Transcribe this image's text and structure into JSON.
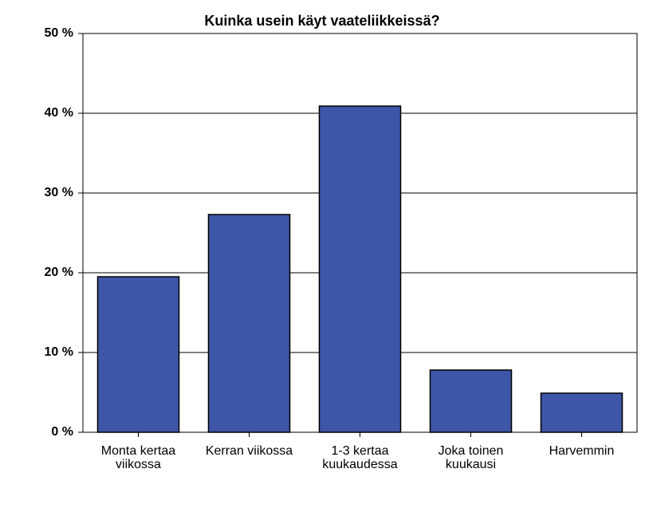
{
  "chart_data": {
    "type": "bar",
    "title": "Kuinka usein käyt vaateliikkeissä?",
    "categories": [
      "Monta kertaa viikossa",
      "Kerran viikossa",
      "1-3 kertaa kuukaudessa",
      "Joka toinen kuukausi",
      "Harvemmin"
    ],
    "values": [
      19.5,
      27.3,
      40.9,
      7.8,
      4.9
    ],
    "color": "#3d56a8",
    "ylim": [
      0,
      50
    ],
    "yticks": [
      {
        "value": 0,
        "label": "0 %"
      },
      {
        "value": 10,
        "label": "10 %"
      },
      {
        "value": 20,
        "label": "20 %"
      },
      {
        "value": 30,
        "label": "30 %"
      },
      {
        "value": 40,
        "label": "40 %"
      },
      {
        "value": 50,
        "label": "50 %"
      }
    ],
    "grid": true
  }
}
